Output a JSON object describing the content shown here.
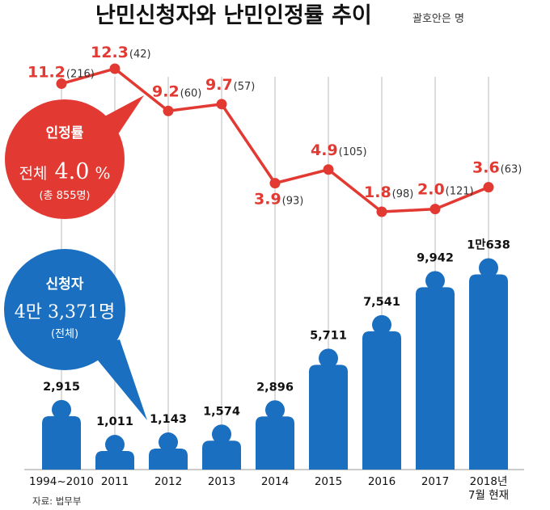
{
  "header": {
    "title": "난민신청자와 난민인정률 추이",
    "unit": "괄호안은 명"
  },
  "source": "자료: 법무부",
  "rate_callout": {
    "heading": "인정률",
    "line_prefix": "전체",
    "value": "4.0",
    "pct": "%",
    "sub": "(총 855명)"
  },
  "applicant_callout": {
    "heading": "신청자",
    "value": "4만 3,371명",
    "sub": "(전체)"
  },
  "colors": {
    "bar": "#1a6fc1",
    "line": "#e23a33",
    "axis": "#bbbbbb"
  },
  "chart_data": {
    "type": "bar+line",
    "categories": [
      "1994~2010",
      "2011",
      "2012",
      "2013",
      "2014",
      "2015",
      "2016",
      "2017",
      "2018년|7월 현재"
    ],
    "series": [
      {
        "name": "신청자",
        "type": "bar",
        "values": [
          2915,
          1011,
          1143,
          1574,
          2896,
          5711,
          7541,
          9942,
          10638
        ],
        "labels": [
          "2,915",
          "1,011",
          "1,143",
          "1,574",
          "2,896",
          "5,711",
          "7,541",
          "9,942",
          "1만638"
        ]
      },
      {
        "name": "인정률",
        "type": "line",
        "values": [
          11.2,
          12.3,
          9.2,
          9.7,
          3.9,
          4.9,
          1.8,
          2.0,
          3.6
        ],
        "labels": [
          "11.2",
          "12.3",
          "9.2",
          "9.7",
          "3.9",
          "4.9",
          "1.8",
          "2.0",
          "3.6"
        ],
        "counts": [
          "(216)",
          "(42)",
          "(60)",
          "(57)",
          "(93)",
          "(105)",
          "(98)",
          "(121)",
          "(63)"
        ]
      }
    ],
    "grid": true
  }
}
